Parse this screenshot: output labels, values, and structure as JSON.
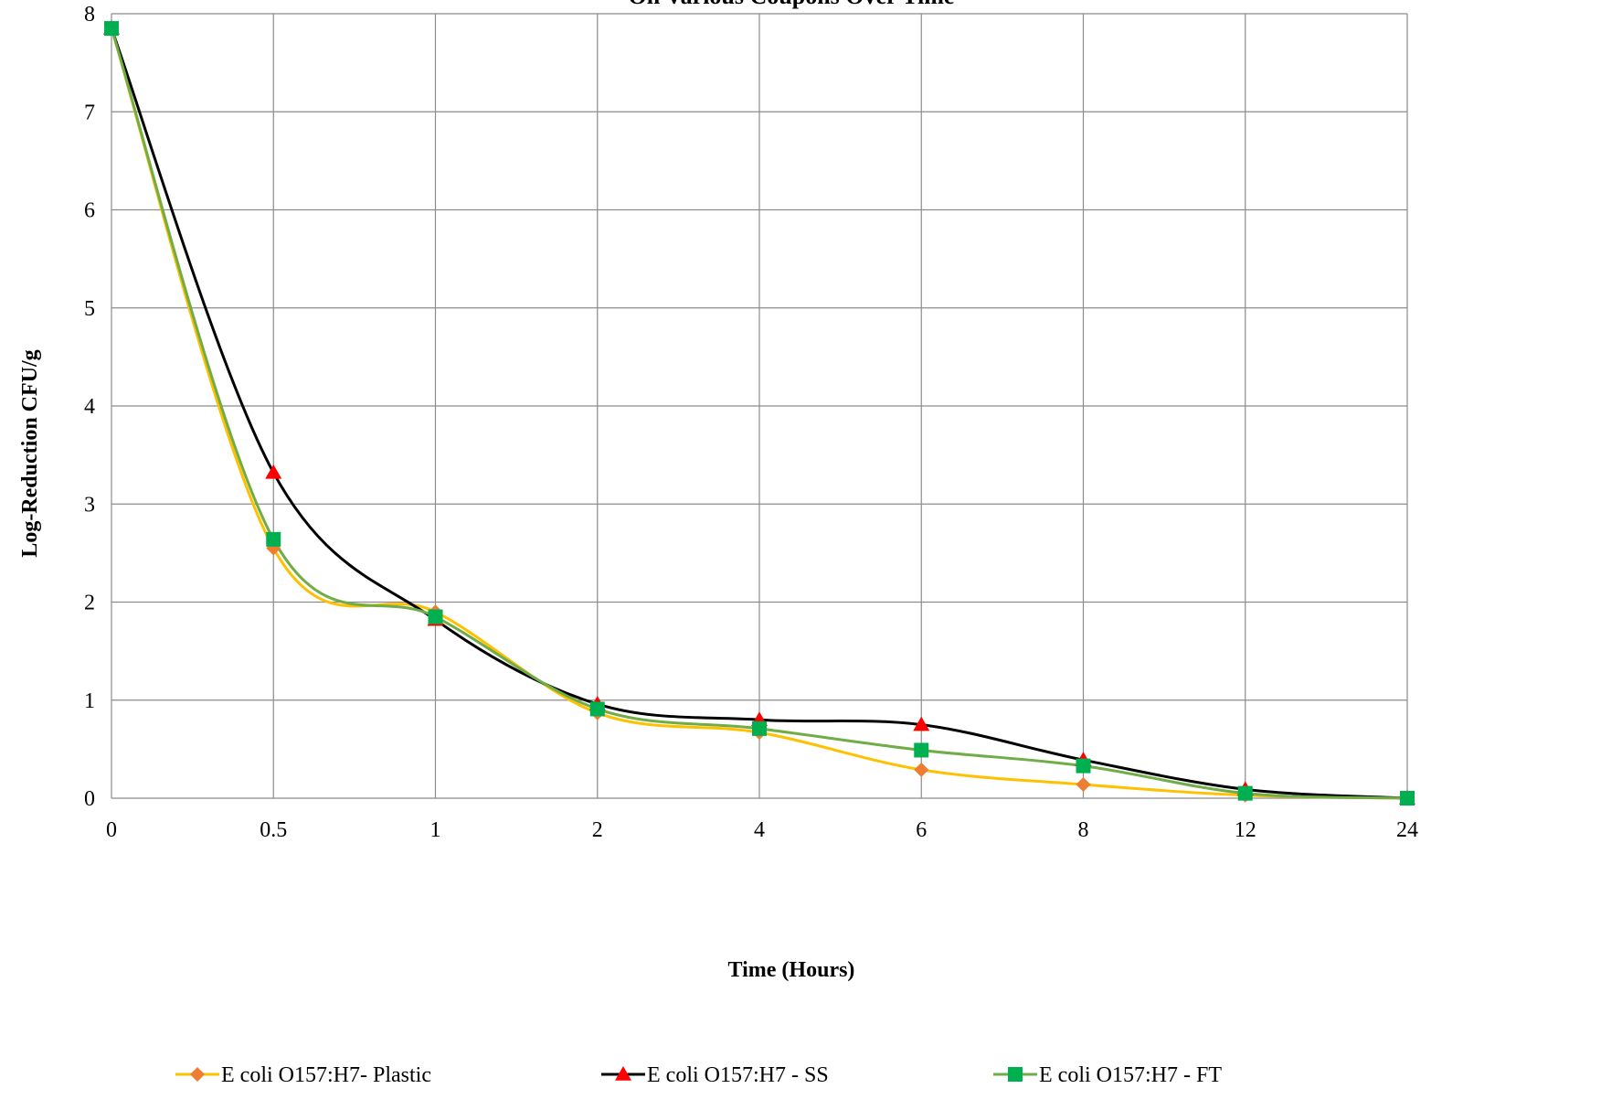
{
  "chart_data": {
    "type": "line",
    "title": "On Various Coupons Over Time",
    "xlabel": "Time (Hours)",
    "ylabel": "Log-Reduction CFU/g",
    "categories": [
      "0",
      "0.5",
      "1",
      "2",
      "4",
      "6",
      "8",
      "12",
      "24"
    ],
    "ylim": [
      0,
      8
    ],
    "yticks": [
      "0",
      "1",
      "2",
      "3",
      "4",
      "5",
      "6",
      "7",
      "8"
    ],
    "grid": true,
    "smooth": true,
    "legend_position": "bottom",
    "series": [
      {
        "name": "E coli O157:H7- Plastic",
        "values": [
          7.85,
          2.55,
          1.9,
          0.87,
          0.67,
          0.29,
          0.14,
          0.03,
          0.0
        ],
        "line_color": "#FFC000",
        "marker": "diamond",
        "marker_color": "#ED7D31"
      },
      {
        "name": "E coli O157:H7 - SS",
        "values": [
          7.85,
          3.32,
          1.82,
          0.96,
          0.8,
          0.75,
          0.39,
          0.09,
          0.0
        ],
        "line_color": "#000000",
        "marker": "triangle",
        "marker_color": "#FF0000"
      },
      {
        "name": "E coli O157:H7 - FT",
        "values": [
          7.85,
          2.64,
          1.85,
          0.91,
          0.71,
          0.49,
          0.33,
          0.05,
          0.0
        ],
        "line_color": "#70AD47",
        "marker": "square",
        "marker_color": "#00B050"
      }
    ]
  }
}
